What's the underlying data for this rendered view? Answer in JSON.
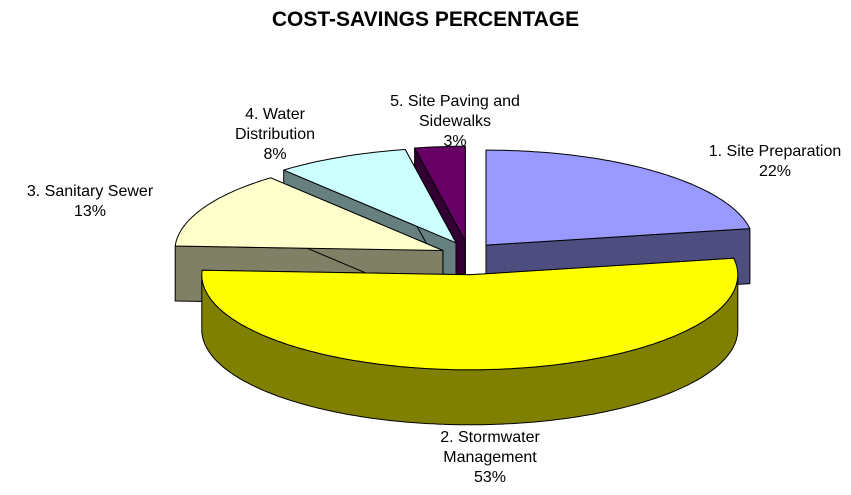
{
  "chart_data": {
    "type": "pie3d",
    "title": "COST-SAVINGS PERCENTAGE",
    "categories": [
      "1. Site Preparation",
      "2. Stormwater Management",
      "3. Sanitary Sewer",
      "4. Water Distribution",
      "5. Site Paving and Sidewalks"
    ],
    "values": [
      22,
      53,
      13,
      8,
      3
    ],
    "value_labels": [
      "22%",
      "53%",
      "13%",
      "8%",
      "3%"
    ],
    "colors": [
      "#9999ff",
      "#ffff00",
      "#ffffcc",
      "#ccffff",
      "#660066"
    ]
  }
}
